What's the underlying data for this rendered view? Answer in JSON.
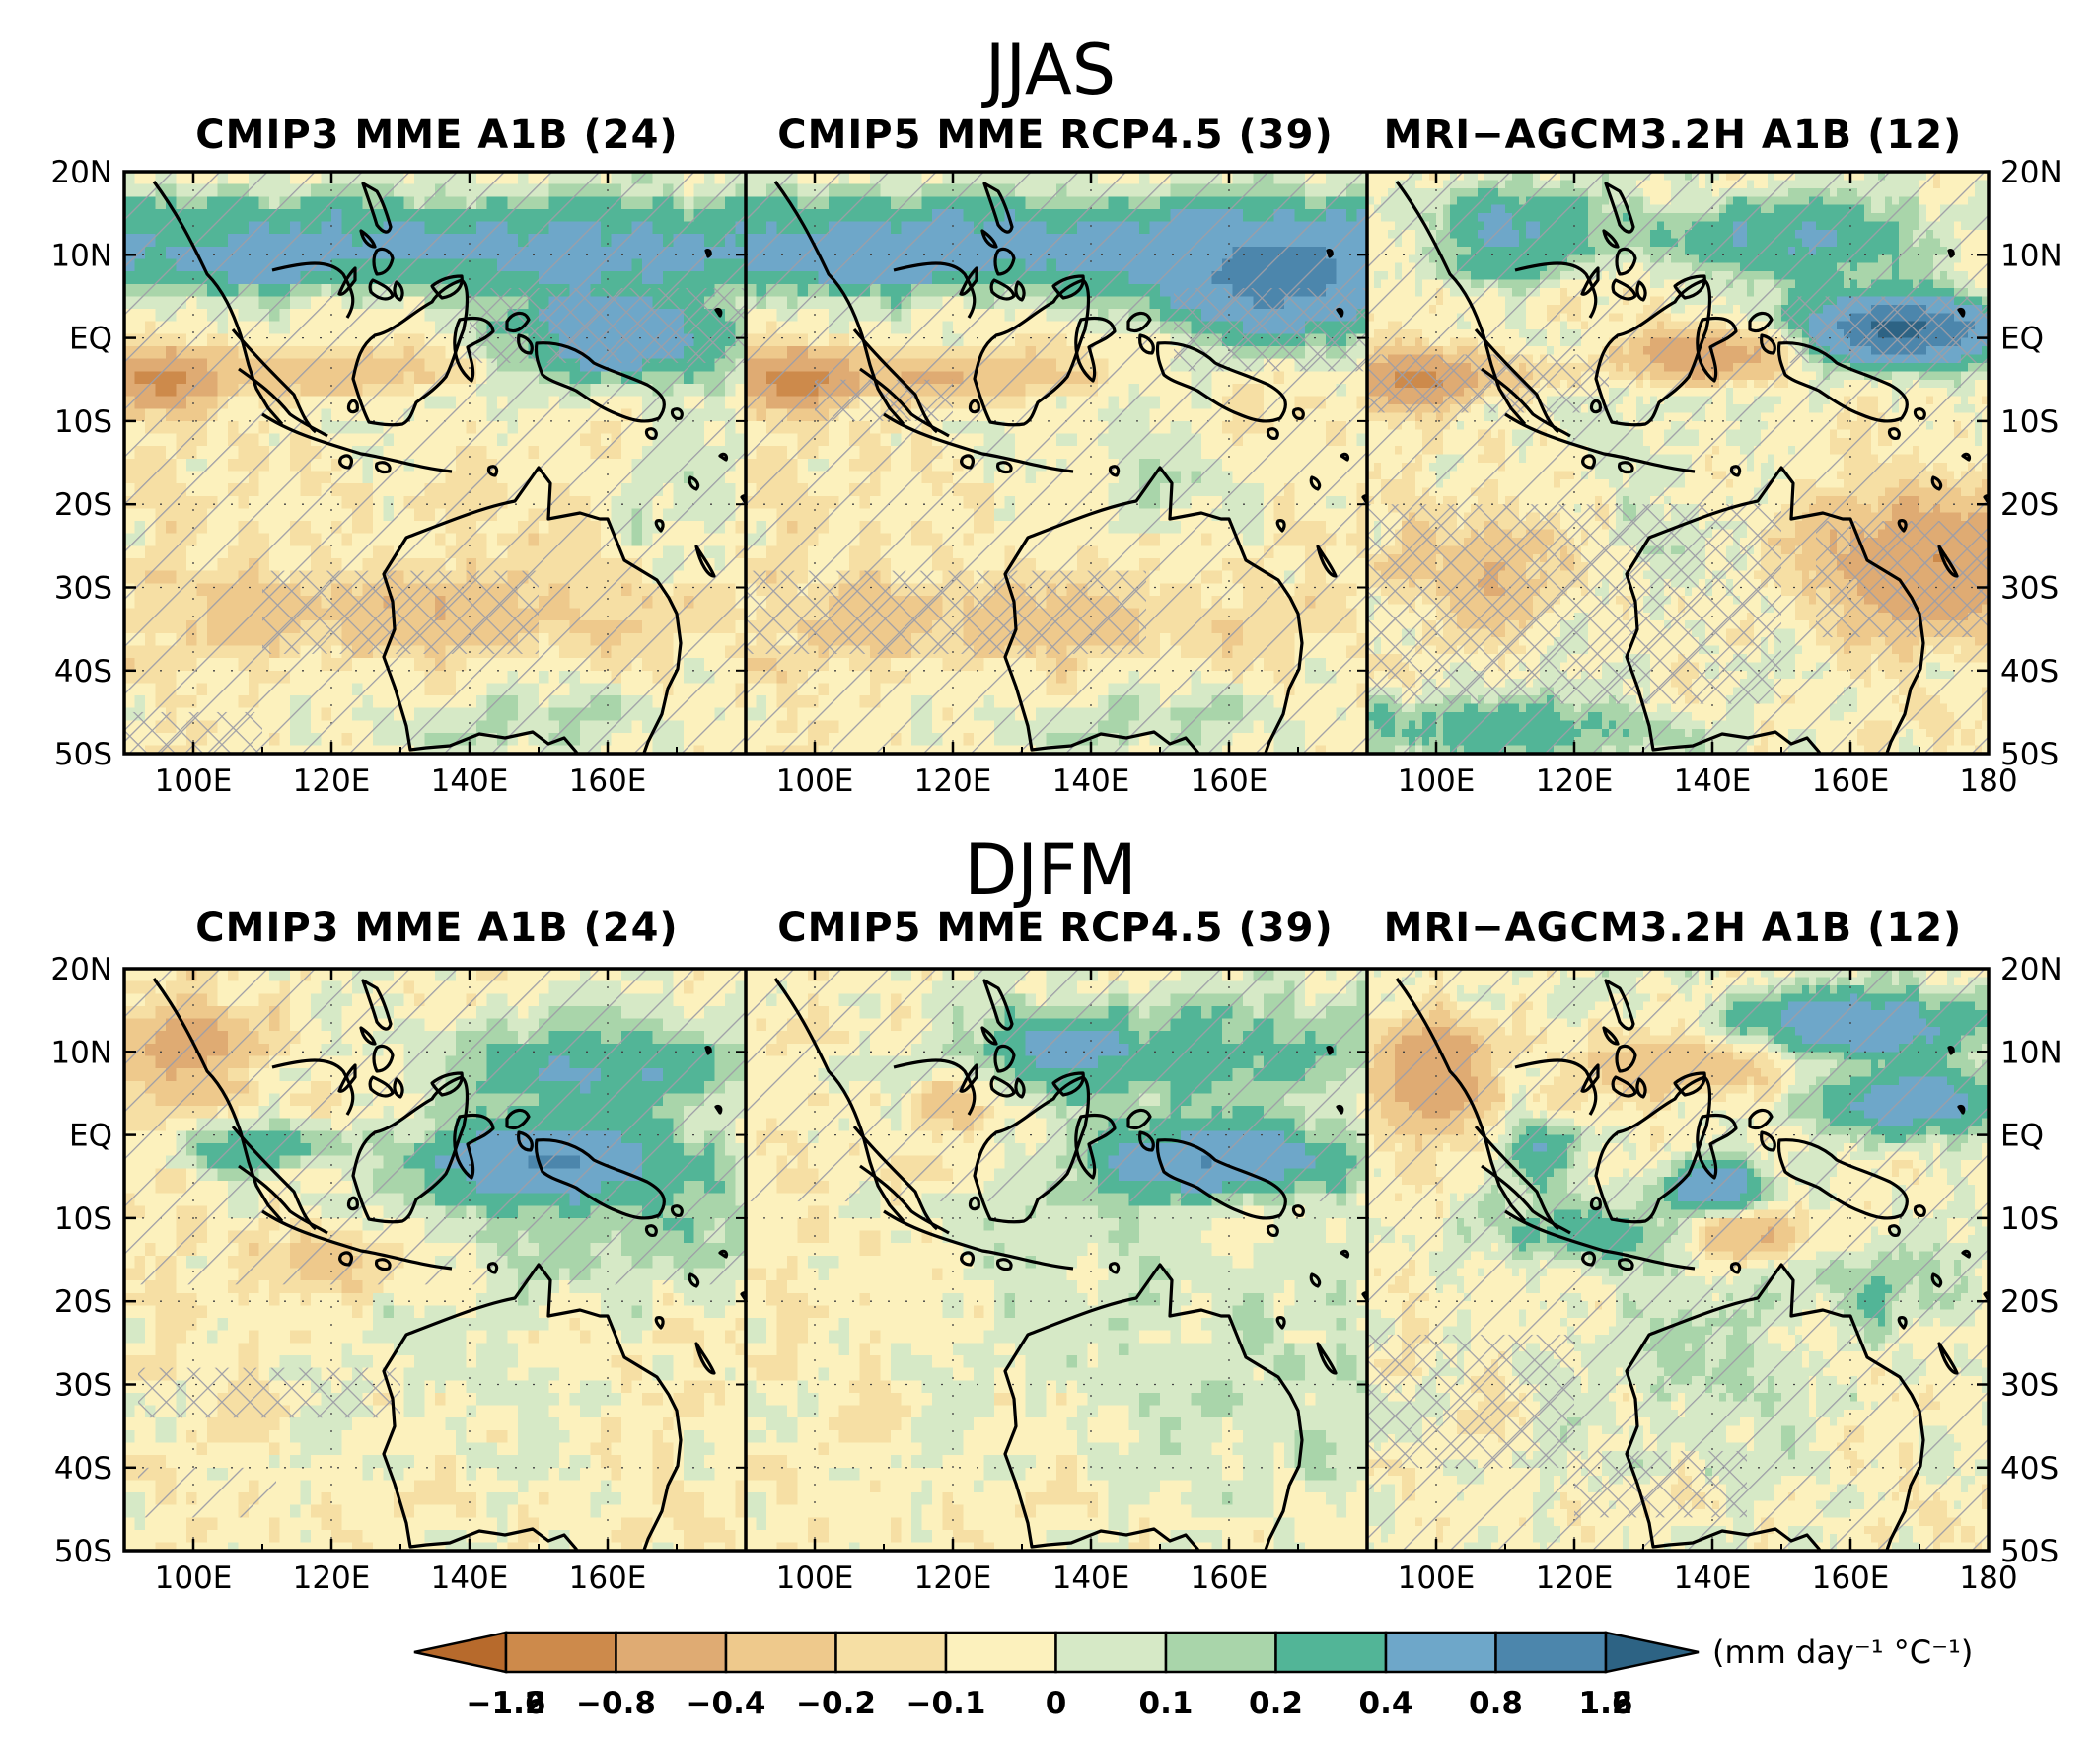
{
  "figure": {
    "seasons": [
      "JJAS",
      "DJFM"
    ],
    "panel_titles": [
      "CMIP3 MME A1B (24)",
      "CMIP5 MME RCP4.5 (39)",
      "MRI−AGCM3.2H A1B (12)"
    ],
    "lat_labels": [
      "20N",
      "10N",
      "EQ",
      "10S",
      "20S",
      "30S",
      "40S",
      "50S"
    ],
    "lon_labels_short": [
      "100E",
      "120E",
      "140E",
      "160E"
    ],
    "lon_labels_full": [
      "100E",
      "120E",
      "140E",
      "160E",
      "180"
    ],
    "colorbar": {
      "labels": [
        "−1.6",
        "−1.2",
        "−0.8",
        "−0.4",
        "−0.2",
        "−0.1",
        "0",
        "0.1",
        "0.2",
        "0.4",
        "0.8",
        "1.2",
        "1.6"
      ],
      "colors": [
        "#b76a2c",
        "#cd8a4b",
        "#dfab73",
        "#eec98c",
        "#f6dfa4",
        "#fcf1bd",
        "#d6e9c6",
        "#a9d5aa",
        "#52b597",
        "#6ea7c9",
        "#4c86ac",
        "#2d6384"
      ],
      "unit": "(mm day⁻¹ °C⁻¹)"
    },
    "map_extent": {
      "lon": [
        90,
        180
      ],
      "lat": [
        -50,
        20
      ]
    },
    "overlay": "hatching marks statistical significance / model agreement"
  }
}
